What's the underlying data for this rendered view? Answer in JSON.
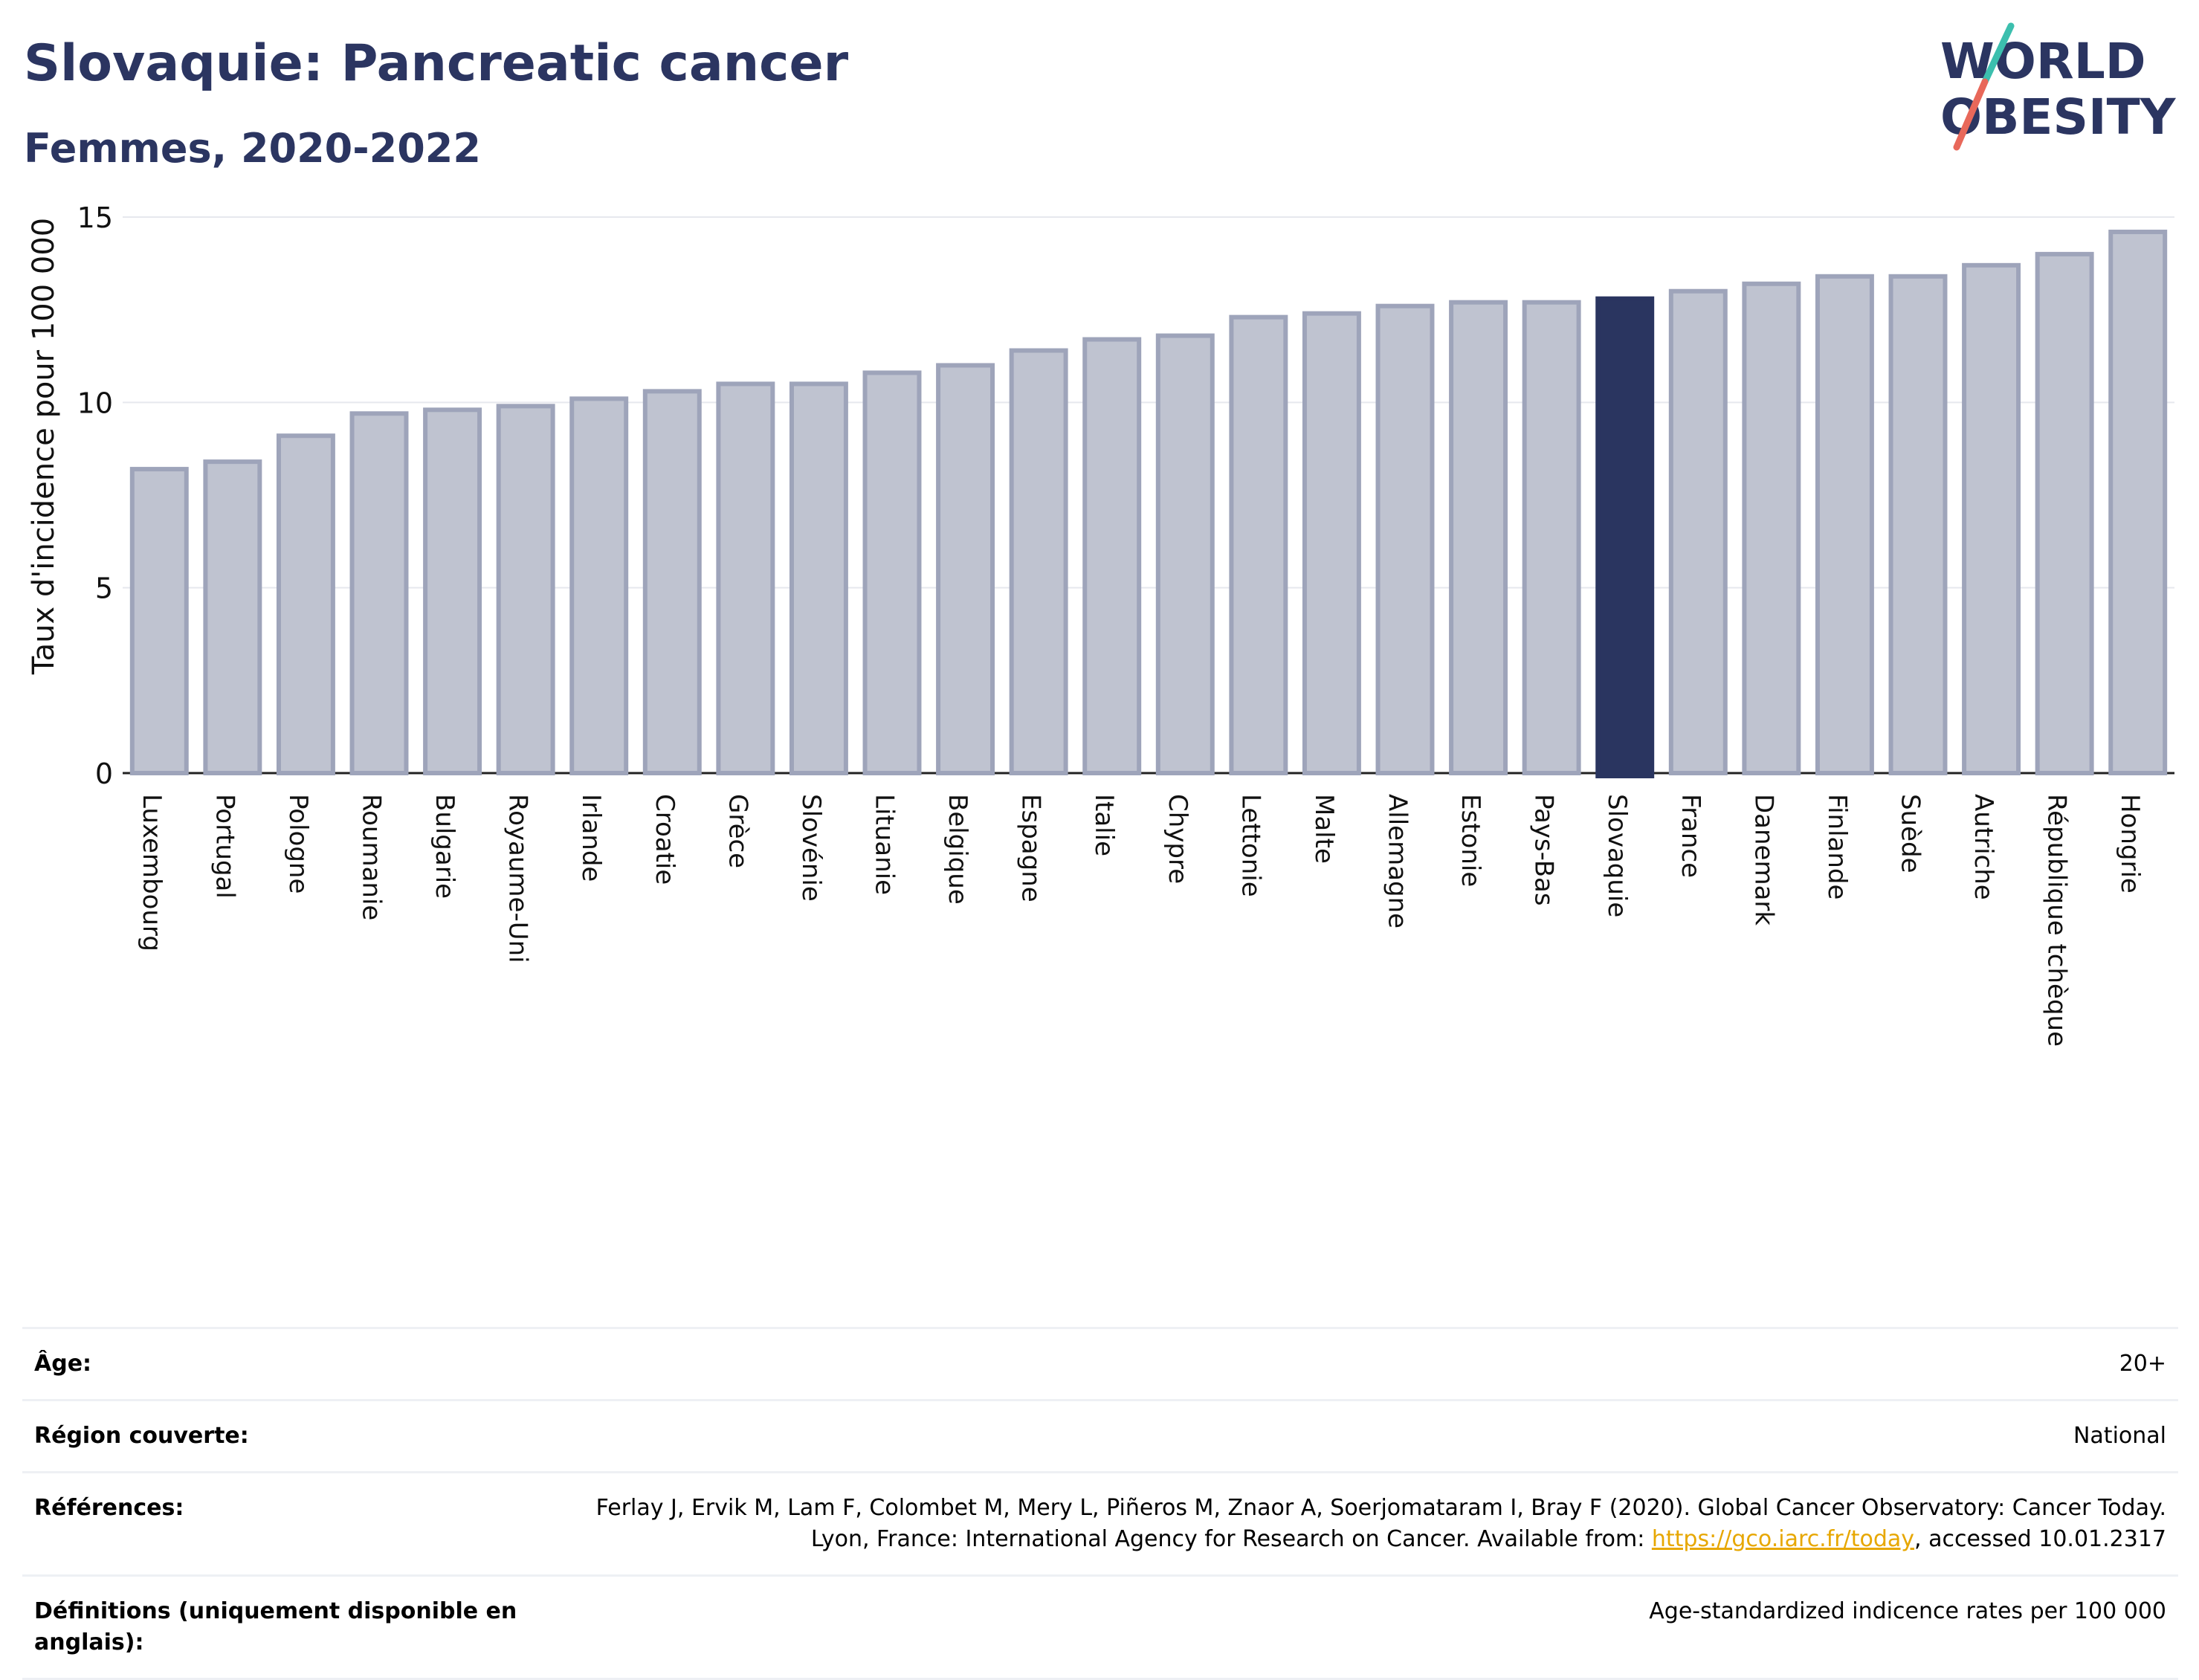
{
  "header": {
    "title": "Slovaquie: Pancreatic cancer",
    "subtitle": "Femmes, 2020-2022",
    "logo_text": "WORLD OBESITY"
  },
  "colors": {
    "title": "#2b3561",
    "bar_fill": "#bfc3d0",
    "bar_stroke": "#9ea4ba",
    "highlight": "#2a3560",
    "link": "#e7a700",
    "logo_teal": "#3cbfae",
    "logo_red": "#e8685a"
  },
  "chart_data": {
    "type": "bar",
    "title": "Slovaquie: Pancreatic cancer",
    "subtitle": "Femmes, 2020-2022",
    "ylabel": "Taux d'incidence pour 100 000",
    "ylim": [
      0,
      15
    ],
    "yticks": [
      0,
      5,
      10,
      15
    ],
    "grid": true,
    "highlight": "Slovaquie",
    "categories": [
      "Luxembourg",
      "Portugal",
      "Pologne",
      "Roumanie",
      "Bulgarie",
      "Royaume-Uni",
      "Irlande",
      "Croatie",
      "Grèce",
      "Slovénie",
      "Lituanie",
      "Belgique",
      "Espagne",
      "Italie",
      "Chypre",
      "Lettonie",
      "Malte",
      "Allemagne",
      "Estonie",
      "Pays-Bas",
      "Slovaquie",
      "France",
      "Danemark",
      "Finlande",
      "Suède",
      "Autriche",
      "République tchèque",
      "Hongrie"
    ],
    "values": [
      8.2,
      8.4,
      9.1,
      9.7,
      9.8,
      9.9,
      10.1,
      10.3,
      10.5,
      10.5,
      10.8,
      11.0,
      11.4,
      11.7,
      11.8,
      12.3,
      12.4,
      12.6,
      12.7,
      12.7,
      12.8,
      13.0,
      13.2,
      13.4,
      13.4,
      13.7,
      14.0,
      14.6
    ]
  },
  "meta": [
    {
      "key": "Âge:",
      "value": "20+"
    },
    {
      "key": "Région couverte:",
      "value": "National"
    },
    {
      "key": "Références:",
      "value_before": "Ferlay J, Ervik M, Lam F, Colombet M, Mery L, Piñeros M, Znaor A, Soerjomataram I, Bray F (2020). Global Cancer Observatory: Cancer Today. Lyon, France: International Agency for Research on Cancer. Available from: ",
      "link": "https://gco.iarc.fr/today",
      "value_after": ", accessed 10.01.2317"
    },
    {
      "key": "Définitions (uniquement disponible en anglais):",
      "value": "Age-standardized indicence rates per 100 000"
    }
  ]
}
